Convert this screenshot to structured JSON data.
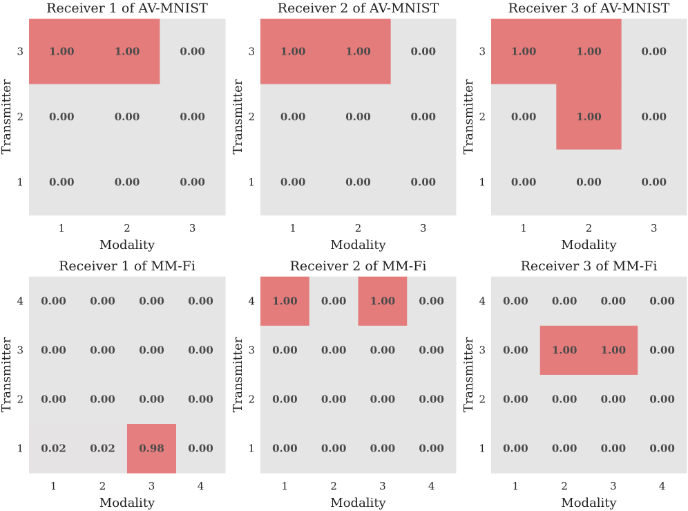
{
  "chart_data": [
    {
      "type": "heatmap",
      "title": "Receiver 1 of AV-MNIST",
      "xlabel": "Modality",
      "ylabel": "Transmitter",
      "x": [
        "1",
        "2",
        "3"
      ],
      "y": [
        "3",
        "2",
        "1"
      ],
      "values": [
        [
          1.0,
          1.0,
          0.0
        ],
        [
          0.0,
          0.0,
          0.0
        ],
        [
          0.0,
          0.0,
          0.0
        ]
      ],
      "labels": [
        [
          "1.00",
          "1.00",
          "0.00"
        ],
        [
          "0.00",
          "0.00",
          "0.00"
        ],
        [
          "0.00",
          "0.00",
          "0.00"
        ]
      ]
    },
    {
      "type": "heatmap",
      "title": "Receiver 2 of AV-MNIST",
      "xlabel": "Modality",
      "ylabel": "Transmitter",
      "x": [
        "1",
        "2",
        "3"
      ],
      "y": [
        "3",
        "2",
        "1"
      ],
      "values": [
        [
          1.0,
          1.0,
          0.0
        ],
        [
          0.0,
          0.0,
          0.0
        ],
        [
          0.0,
          0.0,
          0.0
        ]
      ],
      "labels": [
        [
          "1.00",
          "1.00",
          "0.00"
        ],
        [
          "0.00",
          "0.00",
          "0.00"
        ],
        [
          "0.00",
          "0.00",
          "0.00"
        ]
      ]
    },
    {
      "type": "heatmap",
      "title": "Receiver 3 of AV-MNIST",
      "xlabel": "Modality",
      "ylabel": "Transmitter",
      "x": [
        "1",
        "2",
        "3"
      ],
      "y": [
        "3",
        "2",
        "1"
      ],
      "values": [
        [
          1.0,
          1.0,
          0.0
        ],
        [
          0.0,
          1.0,
          0.0
        ],
        [
          0.0,
          0.0,
          0.0
        ]
      ],
      "labels": [
        [
          "1.00",
          "1.00",
          "0.00"
        ],
        [
          "0.00",
          "1.00",
          "0.00"
        ],
        [
          "0.00",
          "0.00",
          "0.00"
        ]
      ]
    },
    {
      "type": "heatmap",
      "title": "Receiver 1 of MM-Fi",
      "xlabel": "Modality",
      "ylabel": "Transmitter",
      "x": [
        "1",
        "2",
        "3",
        "4"
      ],
      "y": [
        "4",
        "3",
        "2",
        "1"
      ],
      "values": [
        [
          0.0,
          0.0,
          0.0,
          0.0
        ],
        [
          0.0,
          0.0,
          0.0,
          0.0
        ],
        [
          0.0,
          0.0,
          0.0,
          0.0
        ],
        [
          0.02,
          0.02,
          0.98,
          0.0
        ]
      ],
      "labels": [
        [
          "0.00",
          "0.00",
          "0.00",
          "0.00"
        ],
        [
          "0.00",
          "0.00",
          "0.00",
          "0.00"
        ],
        [
          "0.00",
          "0.00",
          "0.00",
          "0.00"
        ],
        [
          "0.02",
          "0.02",
          "0.98",
          "0.00"
        ]
      ]
    },
    {
      "type": "heatmap",
      "title": "Receiver 2 of MM-Fi",
      "xlabel": "Modality",
      "ylabel": "Transmitter",
      "x": [
        "1",
        "2",
        "3",
        "4"
      ],
      "y": [
        "4",
        "3",
        "2",
        "1"
      ],
      "values": [
        [
          1.0,
          0.0,
          1.0,
          0.0
        ],
        [
          0.0,
          0.0,
          0.0,
          0.0
        ],
        [
          0.0,
          0.0,
          0.0,
          0.0
        ],
        [
          0.0,
          0.0,
          0.0,
          0.0
        ]
      ],
      "labels": [
        [
          "1.00",
          "0.00",
          "1.00",
          "0.00"
        ],
        [
          "0.00",
          "0.00",
          "0.00",
          "0.00"
        ],
        [
          "0.00",
          "0.00",
          "0.00",
          "0.00"
        ],
        [
          "0.00",
          "0.00",
          "0.00",
          "0.00"
        ]
      ]
    },
    {
      "type": "heatmap",
      "title": "Receiver 3 of MM-Fi",
      "xlabel": "Modality",
      "ylabel": "Transmitter",
      "x": [
        "1",
        "2",
        "3",
        "4"
      ],
      "y": [
        "4",
        "3",
        "2",
        "1"
      ],
      "values": [
        [
          0.0,
          0.0,
          0.0,
          0.0
        ],
        [
          0.0,
          1.0,
          1.0,
          0.0
        ],
        [
          0.0,
          0.0,
          0.0,
          0.0
        ],
        [
          0.0,
          0.0,
          0.0,
          0.0
        ]
      ],
      "labels": [
        [
          "0.00",
          "0.00",
          "0.00",
          "0.00"
        ],
        [
          "0.00",
          "1.00",
          "1.00",
          "0.00"
        ],
        [
          "0.00",
          "0.00",
          "0.00",
          "0.00"
        ],
        [
          "0.00",
          "0.00",
          "0.00",
          "0.00"
        ]
      ]
    }
  ],
  "colors": {
    "low": "#e5e5e5",
    "high": "#e57c7c",
    "text": "#4a4a4a"
  }
}
